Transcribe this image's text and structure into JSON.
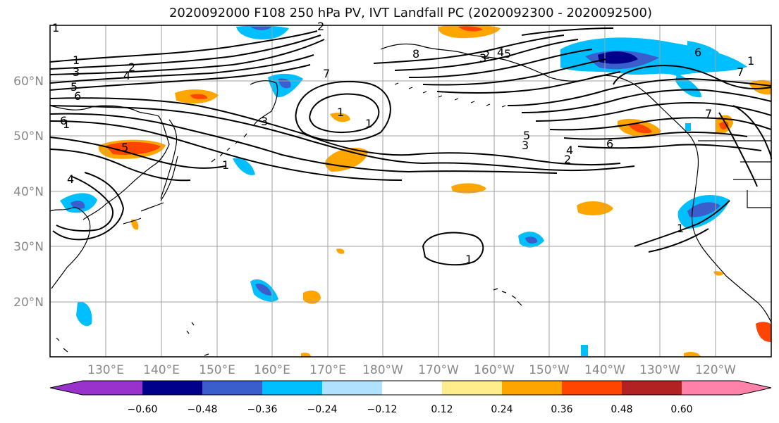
{
  "title": "2020092000 F108 250 hPa PV, IVT Landfall PC (2020092300 - 2020092500)",
  "map": {
    "lon_labels": [
      "130°E",
      "140°E",
      "150°E",
      "160°E",
      "170°E",
      "180°W",
      "170°W",
      "160°W",
      "150°W",
      "140°W",
      "130°W",
      "120°W"
    ],
    "lat_labels": [
      "60°N",
      "50°N",
      "40°N",
      "30°N",
      "20°N"
    ],
    "contour_labels": [
      "1",
      "2",
      "3",
      "4",
      "5",
      "6",
      "1",
      "2",
      "3",
      "4",
      "5",
      "6",
      "7",
      "8",
      "1",
      "2",
      "3",
      "4",
      "5",
      "6",
      "7",
      "1",
      "1",
      "1",
      "1",
      "2",
      "3",
      "4",
      "5",
      "6",
      "7",
      "1",
      "1",
      "1",
      "2",
      "3",
      "4",
      "5",
      "6",
      "7",
      "1",
      "1"
    ],
    "colors": {
      "land_line": "#000000",
      "grid": "#a0a0a0",
      "label_gray": "#888888"
    }
  },
  "colorbar": {
    "ticks": [
      "−0.60",
      "−0.48",
      "−0.36",
      "−0.24",
      "−0.12",
      "0.12",
      "0.24",
      "0.36",
      "0.48",
      "0.60"
    ],
    "colors": [
      "#9932cc",
      "#00008b",
      "#3a5fcd",
      "#00bfff",
      "#b0e2ff",
      "#ffffff",
      "#ffec8b",
      "#ffa500",
      "#ff4500",
      "#b22222",
      "#ff82ab"
    ]
  }
}
